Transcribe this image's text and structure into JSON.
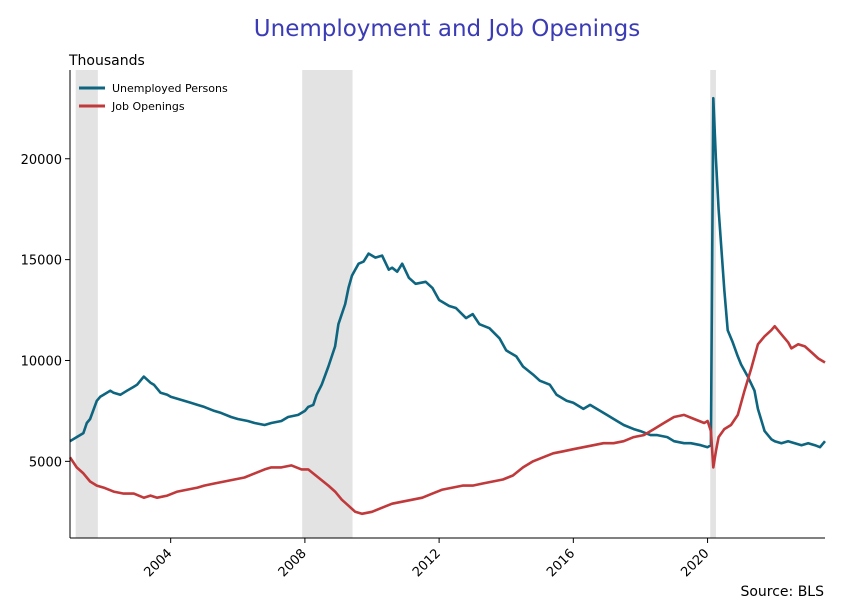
{
  "chart_data": {
    "type": "line",
    "title": "Unemployment and Job Openings",
    "ylabel": "Thousands",
    "source": "Source: BLS",
    "xlim": [
      2001.0,
      2023.5
    ],
    "ylim": [
      1200,
      24400
    ],
    "yticks": [
      5000,
      10000,
      15000,
      20000
    ],
    "ytick_labels": [
      "5000",
      "10000",
      "15000",
      "20000"
    ],
    "xticks": [
      2004,
      2008,
      2012,
      2016,
      2020
    ],
    "xtick_labels": [
      "2004",
      "2008",
      "2012",
      "2016",
      "2020"
    ],
    "legend_position": "top-left",
    "recessions": [
      {
        "start": 2001.17,
        "end": 2001.83
      },
      {
        "start": 2007.92,
        "end": 2009.42
      },
      {
        "start": 2020.08,
        "end": 2020.25
      }
    ],
    "series": [
      {
        "name": "Unemployed Persons",
        "color": "#0e6580",
        "x": [
          2001.0,
          2001.2,
          2001.4,
          2001.5,
          2001.6,
          2001.8,
          2001.9,
          2002.0,
          2002.2,
          2002.3,
          2002.5,
          2002.7,
          2002.9,
          2003.0,
          2003.2,
          2003.4,
          2003.5,
          2003.7,
          2003.9,
          2004.0,
          2004.2,
          2004.4,
          2004.6,
          2004.8,
          2005.0,
          2005.3,
          2005.5,
          2005.8,
          2006.0,
          2006.3,
          2006.5,
          2006.8,
          2007.0,
          2007.3,
          2007.5,
          2007.8,
          2008.0,
          2008.1,
          2008.25,
          2008.35,
          2008.5,
          2008.7,
          2008.9,
          2009.0,
          2009.2,
          2009.3,
          2009.4,
          2009.5,
          2009.6,
          2009.75,
          2009.9,
          2010.1,
          2010.3,
          2010.5,
          2010.6,
          2010.75,
          2010.9,
          2011.1,
          2011.3,
          2011.6,
          2011.8,
          2012.0,
          2012.3,
          2012.5,
          2012.8,
          2013.0,
          2013.2,
          2013.5,
          2013.8,
          2014.0,
          2014.3,
          2014.5,
          2014.8,
          2015.0,
          2015.3,
          2015.5,
          2015.8,
          2016.0,
          2016.3,
          2016.5,
          2016.8,
          2017.0,
          2017.3,
          2017.5,
          2017.8,
          2018.0,
          2018.3,
          2018.5,
          2018.8,
          2019.0,
          2019.3,
          2019.5,
          2019.8,
          2020.0,
          2020.1,
          2020.17,
          2020.25,
          2020.33,
          2020.5,
          2020.6,
          2020.75,
          2020.9,
          2021.0,
          2021.2,
          2021.4,
          2021.5,
          2021.7,
          2021.9,
          2022.0,
          2022.2,
          2022.4,
          2022.6,
          2022.8,
          2023.0,
          2023.2,
          2023.35,
          2023.5
        ],
        "values": [
          6000,
          6200,
          6400,
          6900,
          7100,
          8000,
          8200,
          8300,
          8500,
          8400,
          8300,
          8500,
          8700,
          8800,
          9200,
          8900,
          8800,
          8400,
          8300,
          8200,
          8100,
          8000,
          7900,
          7800,
          7700,
          7500,
          7400,
          7200,
          7100,
          7000,
          6900,
          6800,
          6900,
          7000,
          7200,
          7300,
          7500,
          7700,
          7800,
          8300,
          8800,
          9700,
          10700,
          11800,
          12800,
          13600,
          14200,
          14500,
          14800,
          14900,
          15300,
          15100,
          15200,
          14500,
          14600,
          14400,
          14800,
          14100,
          13800,
          13900,
          13600,
          13000,
          12700,
          12600,
          12100,
          12300,
          11800,
          11600,
          11100,
          10500,
          10200,
          9700,
          9300,
          9000,
          8800,
          8300,
          8000,
          7900,
          7600,
          7800,
          7500,
          7300,
          7000,
          6800,
          6600,
          6500,
          6300,
          6300,
          6200,
          6000,
          5900,
          5900,
          5800,
          5700,
          5800,
          23000,
          20000,
          17500,
          13500,
          11500,
          10900,
          10200,
          9800,
          9200,
          8500,
          7600,
          6500,
          6100,
          6000,
          5900,
          6000,
          5900,
          5800,
          5900,
          5800,
          5700,
          6000
        ]
      },
      {
        "name": "Job Openings",
        "color": "#c0393b",
        "x": [
          2001.0,
          2001.2,
          2001.4,
          2001.6,
          2001.8,
          2002.0,
          2002.3,
          2002.6,
          2002.9,
          2003.2,
          2003.4,
          2003.6,
          2003.9,
          2004.2,
          2004.5,
          2004.8,
          2005.0,
          2005.3,
          2005.6,
          2005.9,
          2006.2,
          2006.5,
          2006.8,
          2007.0,
          2007.3,
          2007.6,
          2007.9,
          2008.1,
          2008.4,
          2008.7,
          2008.9,
          2009.1,
          2009.3,
          2009.5,
          2009.7,
          2010.0,
          2010.3,
          2010.6,
          2010.9,
          2011.2,
          2011.5,
          2011.8,
          2012.1,
          2012.4,
          2012.7,
          2013.0,
          2013.3,
          2013.6,
          2013.9,
          2014.2,
          2014.5,
          2014.8,
          2015.1,
          2015.4,
          2015.7,
          2016.0,
          2016.3,
          2016.6,
          2016.9,
          2017.2,
          2017.5,
          2017.8,
          2018.1,
          2018.4,
          2018.7,
          2019.0,
          2019.3,
          2019.6,
          2019.9,
          2020.0,
          2020.1,
          2020.17,
          2020.25,
          2020.33,
          2020.5,
          2020.7,
          2020.9,
          2021.1,
          2021.3,
          2021.5,
          2021.7,
          2021.9,
          2022.0,
          2022.2,
          2022.4,
          2022.5,
          2022.7,
          2022.9,
          2023.1,
          2023.3,
          2023.5
        ],
        "values": [
          5200,
          4700,
          4400,
          4000,
          3800,
          3700,
          3500,
          3400,
          3400,
          3200,
          3300,
          3200,
          3300,
          3500,
          3600,
          3700,
          3800,
          3900,
          4000,
          4100,
          4200,
          4400,
          4600,
          4700,
          4700,
          4800,
          4600,
          4600,
          4200,
          3800,
          3500,
          3100,
          2800,
          2500,
          2400,
          2500,
          2700,
          2900,
          3000,
          3100,
          3200,
          3400,
          3600,
          3700,
          3800,
          3800,
          3900,
          4000,
          4100,
          4300,
          4700,
          5000,
          5200,
          5400,
          5500,
          5600,
          5700,
          5800,
          5900,
          5900,
          6000,
          6200,
          6300,
          6600,
          6900,
          7200,
          7300,
          7100,
          6900,
          7000,
          6500,
          4700,
          5500,
          6200,
          6600,
          6800,
          7300,
          8500,
          9600,
          10800,
          11200,
          11500,
          11700,
          11300,
          10900,
          10600,
          10800,
          10700,
          10400,
          10100,
          9900
        ]
      }
    ]
  }
}
